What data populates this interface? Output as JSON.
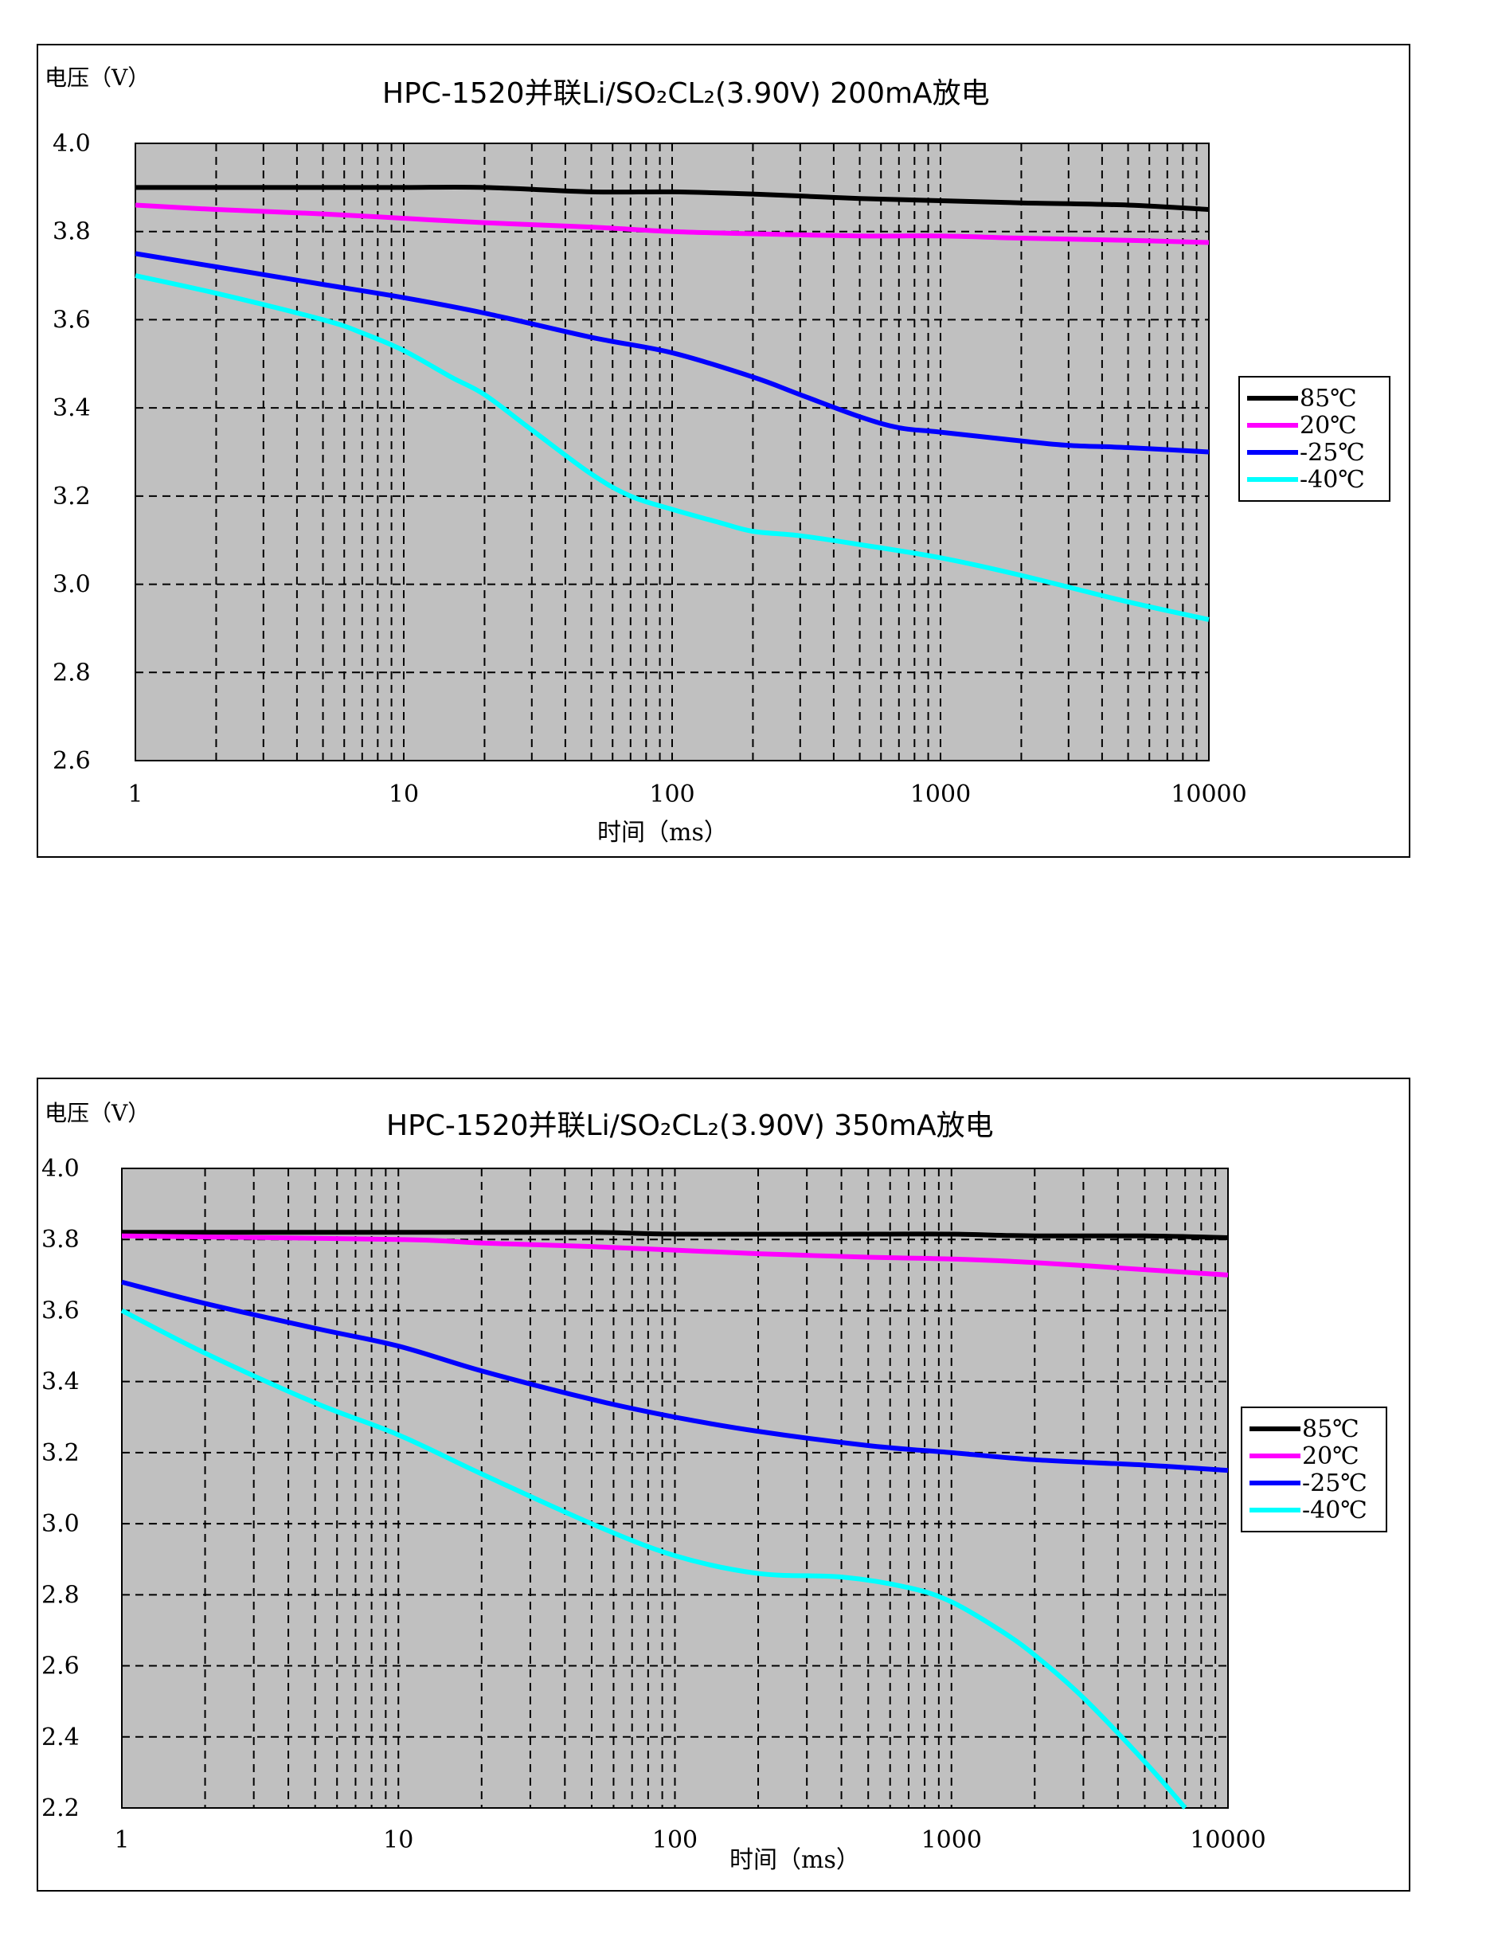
{
  "chart_data": [
    {
      "type": "line",
      "title": "HPC-1520并联Li/SO₂CL₂(3.90V) 200mA放电",
      "ylabel": "电压（V）",
      "xlabel": "时间（ms）",
      "xscale": "log",
      "xlim": [
        1,
        10000
      ],
      "ylim": [
        2.6,
        4.0
      ],
      "x_ticks": [
        "1",
        "10",
        "100",
        "1000",
        "10000"
      ],
      "y_ticks": [
        "2.6",
        "2.8",
        "3.0",
        "3.2",
        "3.4",
        "3.6",
        "3.8",
        "4.0"
      ],
      "grid": true,
      "legend": "right",
      "series": [
        {
          "name": "85℃",
          "color": "#000000",
          "x": [
            1,
            5,
            10,
            20,
            50,
            100,
            200,
            500,
            1000,
            2000,
            5000,
            10000
          ],
          "y": [
            3.9,
            3.9,
            3.9,
            3.9,
            3.89,
            3.89,
            3.885,
            3.875,
            3.87,
            3.865,
            3.86,
            3.85
          ]
        },
        {
          "name": "20℃",
          "color": "#ff00ff",
          "x": [
            1,
            2,
            5,
            10,
            20,
            50,
            100,
            200,
            500,
            1000,
            2000,
            5000,
            10000
          ],
          "y": [
            3.86,
            3.85,
            3.84,
            3.83,
            3.82,
            3.81,
            3.8,
            3.795,
            3.79,
            3.79,
            3.785,
            3.78,
            3.775
          ]
        },
        {
          "name": "-25℃",
          "color": "#0000ff",
          "x": [
            1,
            2,
            5,
            10,
            20,
            50,
            100,
            200,
            300,
            500,
            700,
            1000,
            2000,
            3000,
            5000,
            10000
          ],
          "y": [
            3.75,
            3.72,
            3.68,
            3.65,
            3.615,
            3.56,
            3.525,
            3.47,
            3.43,
            3.38,
            3.355,
            3.345,
            3.325,
            3.315,
            3.31,
            3.3
          ]
        },
        {
          "name": "-40℃",
          "color": "#00ffff",
          "x": [
            1,
            2,
            5,
            7,
            10,
            15,
            20,
            30,
            50,
            70,
            100,
            150,
            200,
            300,
            500,
            1000,
            2000,
            5000,
            10000
          ],
          "y": [
            3.7,
            3.66,
            3.6,
            3.57,
            3.53,
            3.47,
            3.43,
            3.35,
            3.25,
            3.2,
            3.17,
            3.14,
            3.12,
            3.11,
            3.09,
            3.06,
            3.02,
            2.96,
            2.92
          ]
        }
      ]
    },
    {
      "type": "line",
      "title": "HPC-1520并联Li/SO₂CL₂(3.90V) 350mA放电",
      "ylabel": "电压（V）",
      "xlabel": "时间（ms）",
      "xscale": "log",
      "xlim": [
        1,
        10000
      ],
      "ylim": [
        2.2,
        4.0
      ],
      "x_ticks": [
        "1",
        "10",
        "100",
        "1000",
        "10000"
      ],
      "y_ticks": [
        "2.2",
        "2.4",
        "2.6",
        "2.8",
        "3.0",
        "3.2",
        "3.4",
        "3.6",
        "3.8",
        "4.0"
      ],
      "grid": true,
      "legend": "right",
      "series": [
        {
          "name": "85℃",
          "color": "#000000",
          "x": [
            1,
            10,
            50,
            100,
            500,
            1000,
            2000,
            5000,
            10000
          ],
          "y": [
            3.82,
            3.82,
            3.82,
            3.815,
            3.815,
            3.815,
            3.81,
            3.81,
            3.805
          ]
        },
        {
          "name": "20℃",
          "color": "#ff00ff",
          "x": [
            1,
            10,
            20,
            50,
            100,
            200,
            500,
            1000,
            2000,
            5000,
            10000
          ],
          "y": [
            3.81,
            3.8,
            3.79,
            3.78,
            3.77,
            3.76,
            3.75,
            3.745,
            3.735,
            3.715,
            3.7
          ]
        },
        {
          "name": "-25℃",
          "color": "#0000ff",
          "x": [
            1,
            2,
            5,
            10,
            20,
            50,
            100,
            200,
            500,
            1000,
            2000,
            5000,
            10000
          ],
          "y": [
            3.68,
            3.62,
            3.55,
            3.5,
            3.43,
            3.35,
            3.3,
            3.26,
            3.22,
            3.2,
            3.18,
            3.165,
            3.15
          ]
        },
        {
          "name": "-40℃",
          "color": "#00ffff",
          "x": [
            1,
            2,
            5,
            10,
            20,
            50,
            100,
            200,
            400,
            700,
            1000,
            1500,
            2000,
            3000,
            5000,
            7000
          ],
          "y": [
            3.6,
            3.48,
            3.34,
            3.25,
            3.14,
            3.0,
            2.91,
            2.86,
            2.85,
            2.82,
            2.78,
            2.7,
            2.63,
            2.51,
            2.33,
            2.2
          ]
        }
      ]
    }
  ]
}
